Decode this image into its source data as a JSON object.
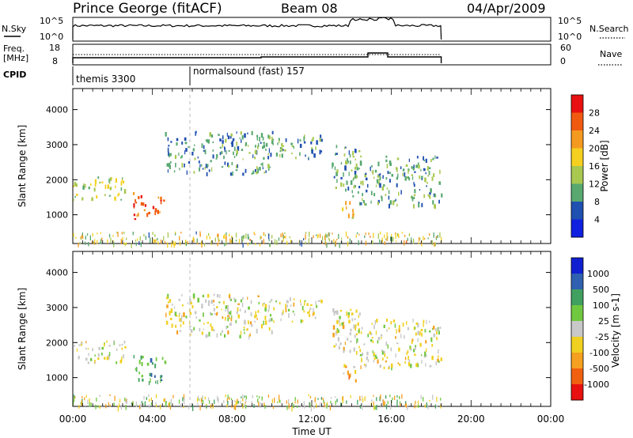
{
  "header": {
    "site": "Prince George (fitACF)",
    "beam": "Beam 08",
    "date": "04/Apr/2009"
  },
  "sky_panel": {
    "left_label": "N.Sky",
    "right_label": "N.Search",
    "ticks_left": [
      "10^5",
      "10^0"
    ],
    "ticks_right": [
      "10^5",
      "10^0"
    ]
  },
  "freq_panel": {
    "left_label_1": "Freq.",
    "left_label_2": "[MHz]",
    "right_label": "Nave",
    "ticks_left": [
      "18",
      "8"
    ],
    "ticks_right": [
      "60",
      "0"
    ]
  },
  "cpid": {
    "label": "CPID",
    "modes": [
      {
        "name": "themis 3300",
        "start_hour": 0
      },
      {
        "name": "normalsound (fast) 157",
        "start_hour": 6.0
      }
    ]
  },
  "chart_data": [
    {
      "type": "heatmap",
      "quantity": "Power",
      "ylabel": "Slant Range [km]",
      "xlabel": "",
      "colorbar_label": "Power [dB]",
      "colorbar_ticks": [
        "28",
        "24",
        "20",
        "16",
        "12",
        "8",
        "4"
      ],
      "colorbar_colors": [
        "#e81010",
        "#f05a10",
        "#f59a20",
        "#f5d020",
        "#a8c850",
        "#58a870",
        "#2050b0",
        "#1020e0"
      ],
      "ylim": [
        180,
        4600
      ],
      "yticks": [
        "4000",
        "3000",
        "2000",
        "1000"
      ],
      "xlim_hours": [
        0,
        24
      ],
      "data_end_hour": 18.5,
      "regions": [
        {
          "t0": 0.0,
          "t1": 2.6,
          "r0": 1450,
          "r1": 2100,
          "level": 0.45
        },
        {
          "t0": 3.0,
          "t1": 4.6,
          "r0": 900,
          "r1": 1650,
          "level": 0.85
        },
        {
          "t0": 4.6,
          "t1": 10.0,
          "r0": 2200,
          "r1": 3400,
          "level": 0.25
        },
        {
          "t0": 9.5,
          "t1": 12.5,
          "r0": 2600,
          "r1": 3300,
          "level": 0.3
        },
        {
          "t0": 13.0,
          "t1": 14.4,
          "r0": 1700,
          "r1": 3000,
          "level": 0.25
        },
        {
          "t0": 13.5,
          "t1": 14.2,
          "r0": 900,
          "r1": 1400,
          "level": 0.6
        },
        {
          "t0": 14.0,
          "t1": 18.5,
          "r0": 1300,
          "r1": 2700,
          "level": 0.3
        }
      ]
    },
    {
      "type": "heatmap",
      "quantity": "Velocity",
      "ylabel": "Slant Range [km]",
      "xlabel": "Time UT",
      "colorbar_label": "Velocity [m s-1]",
      "colorbar_ticks": [
        "1000",
        "500",
        "100",
        "25",
        "-25",
        "-100",
        "-500",
        "-1000"
      ],
      "colorbar_colors": [
        "#1020d0",
        "#3060b0",
        "#40a060",
        "#70c840",
        "#c8c8c8",
        "#f0d020",
        "#f5a020",
        "#f06010",
        "#e81010"
      ],
      "ylim": [
        180,
        4600
      ],
      "yticks": [
        "4000",
        "3000",
        "2000",
        "1000"
      ],
      "xlim_hours": [
        0,
        24
      ],
      "xticks": [
        "00:00",
        "04:00",
        "08:00",
        "12:00",
        "16:00",
        "20:00",
        "00:00"
      ],
      "data_end_hour": 18.5,
      "regions": [
        {
          "t0": 0.0,
          "t1": 2.6,
          "r0": 1450,
          "r1": 2100,
          "level": 0.48
        },
        {
          "t0": 3.0,
          "t1": 4.6,
          "r0": 900,
          "r1": 1650,
          "level": 0.72
        },
        {
          "t0": 4.6,
          "t1": 10.0,
          "r0": 2200,
          "r1": 3400,
          "level": 0.45
        },
        {
          "t0": 9.5,
          "t1": 12.5,
          "r0": 2600,
          "r1": 3300,
          "level": 0.46
        },
        {
          "t0": 13.0,
          "t1": 14.4,
          "r0": 1700,
          "r1": 3000,
          "level": 0.42
        },
        {
          "t0": 13.5,
          "t1": 14.2,
          "r0": 900,
          "r1": 1400,
          "level": 0.28
        },
        {
          "t0": 14.0,
          "t1": 18.5,
          "r0": 1300,
          "r1": 2700,
          "level": 0.46
        }
      ]
    }
  ]
}
